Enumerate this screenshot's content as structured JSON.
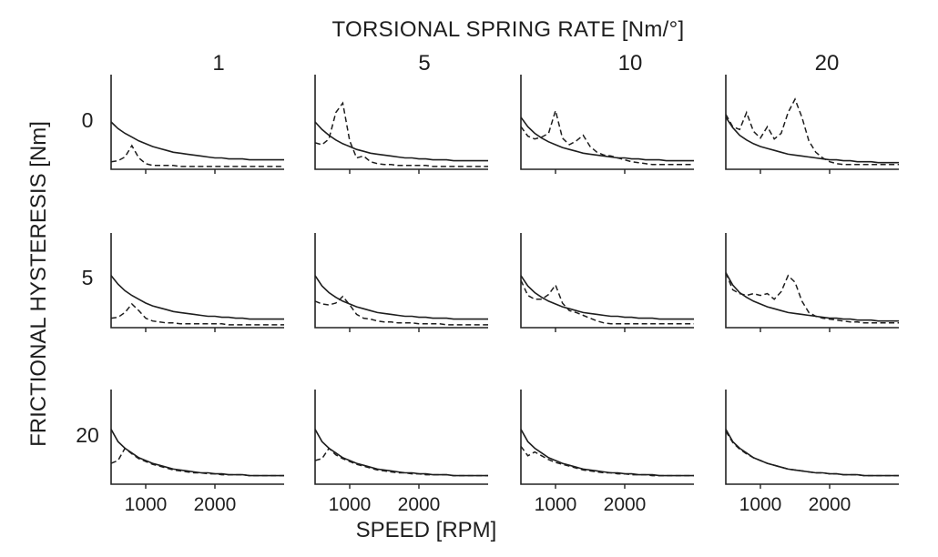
{
  "chart_data": {
    "type": "line",
    "layout": "small-multiples-grid",
    "title": "TORSIONAL SPRING RATE [Nm/°]",
    "xlabel": "SPEED [RPM]",
    "ylabel": "FRICTIONAL HYSTERESIS [Nm]",
    "columns": [
      "1",
      "5",
      "10",
      "20"
    ],
    "rows": [
      "0",
      "5",
      "20"
    ],
    "xlim": [
      500,
      3000
    ],
    "ylim": [
      0,
      1
    ],
    "xticks": [
      1000,
      2000
    ],
    "xtick_labels": [
      "1000",
      "2000"
    ],
    "grid": false,
    "series_styles": {
      "solid": "solid line",
      "dashed": "dashed line"
    },
    "x": [
      500,
      600,
      700,
      800,
      900,
      1000,
      1100,
      1200,
      1300,
      1400,
      1500,
      1600,
      1700,
      1800,
      1900,
      2000,
      2100,
      2200,
      2300,
      2400,
      2500,
      2600,
      2700,
      2800,
      2900,
      3000
    ],
    "panels": [
      {
        "row": "0",
        "col": "1",
        "solid": [
          0.5,
          0.43,
          0.38,
          0.34,
          0.3,
          0.27,
          0.24,
          0.22,
          0.2,
          0.18,
          0.17,
          0.16,
          0.15,
          0.14,
          0.13,
          0.12,
          0.12,
          0.11,
          0.11,
          0.11,
          0.1,
          0.1,
          0.1,
          0.1,
          0.1,
          0.1
        ],
        "dashed": [
          0.08,
          0.09,
          0.13,
          0.25,
          0.12,
          0.06,
          0.04,
          0.04,
          0.04,
          0.04,
          0.03,
          0.03,
          0.03,
          0.03,
          0.03,
          0.03,
          0.03,
          0.03,
          0.03,
          0.03,
          0.03,
          0.03,
          0.03,
          0.03,
          0.03,
          0.03
        ]
      },
      {
        "row": "0",
        "col": "5",
        "solid": [
          0.5,
          0.42,
          0.36,
          0.31,
          0.27,
          0.24,
          0.21,
          0.19,
          0.17,
          0.16,
          0.15,
          0.14,
          0.13,
          0.12,
          0.12,
          0.11,
          0.11,
          0.1,
          0.1,
          0.1,
          0.09,
          0.09,
          0.09,
          0.09,
          0.09,
          0.09
        ],
        "dashed": [
          0.28,
          0.26,
          0.32,
          0.6,
          0.7,
          0.3,
          0.12,
          0.14,
          0.08,
          0.06,
          0.05,
          0.05,
          0.04,
          0.04,
          0.04,
          0.04,
          0.04,
          0.03,
          0.03,
          0.03,
          0.03,
          0.03,
          0.03,
          0.03,
          0.03,
          0.03
        ]
      },
      {
        "row": "0",
        "col": "10",
        "solid": [
          0.55,
          0.45,
          0.38,
          0.33,
          0.29,
          0.26,
          0.23,
          0.21,
          0.19,
          0.17,
          0.16,
          0.15,
          0.14,
          0.13,
          0.12,
          0.12,
          0.11,
          0.11,
          0.1,
          0.1,
          0.1,
          0.09,
          0.09,
          0.09,
          0.09,
          0.09
        ],
        "dashed": [
          0.45,
          0.35,
          0.32,
          0.34,
          0.38,
          0.62,
          0.33,
          0.26,
          0.3,
          0.36,
          0.24,
          0.18,
          0.15,
          0.14,
          0.12,
          0.1,
          0.08,
          0.07,
          0.06,
          0.05,
          0.05,
          0.05,
          0.05,
          0.05,
          0.05,
          0.05
        ]
      },
      {
        "row": "0",
        "col": "20",
        "solid": [
          0.55,
          0.44,
          0.36,
          0.31,
          0.27,
          0.24,
          0.22,
          0.2,
          0.18,
          0.16,
          0.15,
          0.14,
          0.13,
          0.12,
          0.11,
          0.1,
          0.1,
          0.09,
          0.09,
          0.08,
          0.08,
          0.08,
          0.07,
          0.07,
          0.07,
          0.07
        ],
        "dashed": [
          0.58,
          0.45,
          0.42,
          0.6,
          0.4,
          0.33,
          0.45,
          0.32,
          0.38,
          0.6,
          0.74,
          0.55,
          0.3,
          0.18,
          0.12,
          0.08,
          0.06,
          0.05,
          0.05,
          0.05,
          0.05,
          0.05,
          0.05,
          0.05,
          0.05,
          0.05
        ]
      },
      {
        "row": "5",
        "col": "1",
        "solid": [
          0.55,
          0.46,
          0.39,
          0.34,
          0.3,
          0.26,
          0.23,
          0.21,
          0.19,
          0.17,
          0.16,
          0.15,
          0.14,
          0.13,
          0.12,
          0.12,
          0.11,
          0.11,
          0.1,
          0.1,
          0.09,
          0.09,
          0.09,
          0.09,
          0.09,
          0.09
        ],
        "dashed": [
          0.1,
          0.11,
          0.16,
          0.25,
          0.18,
          0.1,
          0.07,
          0.06,
          0.05,
          0.05,
          0.04,
          0.04,
          0.04,
          0.04,
          0.04,
          0.04,
          0.04,
          0.03,
          0.03,
          0.03,
          0.03,
          0.03,
          0.03,
          0.03,
          0.03,
          0.03
        ]
      },
      {
        "row": "5",
        "col": "5",
        "solid": [
          0.55,
          0.44,
          0.37,
          0.32,
          0.28,
          0.25,
          0.22,
          0.2,
          0.18,
          0.16,
          0.15,
          0.14,
          0.13,
          0.12,
          0.12,
          0.11,
          0.11,
          0.1,
          0.1,
          0.1,
          0.09,
          0.09,
          0.09,
          0.09,
          0.09,
          0.09
        ],
        "dashed": [
          0.28,
          0.25,
          0.24,
          0.26,
          0.33,
          0.24,
          0.14,
          0.1,
          0.09,
          0.07,
          0.06,
          0.06,
          0.05,
          0.05,
          0.05,
          0.04,
          0.04,
          0.04,
          0.04,
          0.03,
          0.03,
          0.03,
          0.03,
          0.03,
          0.03,
          0.03
        ]
      },
      {
        "row": "5",
        "col": "10",
        "solid": [
          0.55,
          0.44,
          0.37,
          0.32,
          0.28,
          0.25,
          0.22,
          0.2,
          0.18,
          0.16,
          0.15,
          0.14,
          0.13,
          0.12,
          0.12,
          0.11,
          0.11,
          0.1,
          0.1,
          0.1,
          0.09,
          0.09,
          0.09,
          0.09,
          0.09,
          0.09
        ],
        "dashed": [
          0.5,
          0.34,
          0.3,
          0.3,
          0.35,
          0.45,
          0.26,
          0.18,
          0.16,
          0.13,
          0.1,
          0.07,
          0.05,
          0.04,
          0.04,
          0.04,
          0.04,
          0.04,
          0.04,
          0.04,
          0.04,
          0.04,
          0.04,
          0.04,
          0.04,
          0.04
        ]
      },
      {
        "row": "5",
        "col": "20",
        "solid": [
          0.58,
          0.45,
          0.37,
          0.32,
          0.28,
          0.25,
          0.22,
          0.2,
          0.18,
          0.16,
          0.15,
          0.14,
          0.13,
          0.12,
          0.11,
          0.1,
          0.1,
          0.09,
          0.09,
          0.08,
          0.08,
          0.08,
          0.07,
          0.07,
          0.07,
          0.07
        ],
        "dashed": [
          0.58,
          0.4,
          0.36,
          0.34,
          0.36,
          0.34,
          0.36,
          0.3,
          0.38,
          0.55,
          0.48,
          0.28,
          0.16,
          0.12,
          0.1,
          0.09,
          0.08,
          0.07,
          0.06,
          0.06,
          0.05,
          0.05,
          0.05,
          0.05,
          0.05,
          0.05
        ]
      },
      {
        "row": "20",
        "col": "1",
        "solid": [
          0.58,
          0.45,
          0.38,
          0.33,
          0.28,
          0.25,
          0.22,
          0.2,
          0.18,
          0.16,
          0.15,
          0.14,
          0.13,
          0.12,
          0.12,
          0.11,
          0.11,
          0.1,
          0.1,
          0.1,
          0.09,
          0.09,
          0.09,
          0.09,
          0.09,
          0.09
        ],
        "dashed": [
          0.22,
          0.25,
          0.38,
          0.32,
          0.27,
          0.24,
          0.21,
          0.19,
          0.17,
          0.15,
          0.14,
          0.13,
          0.12,
          0.12,
          0.11,
          0.11,
          0.1,
          0.1,
          0.1,
          0.1,
          0.09,
          0.09,
          0.09,
          0.09,
          0.09,
          0.09
        ]
      },
      {
        "row": "20",
        "col": "5",
        "solid": [
          0.58,
          0.45,
          0.38,
          0.33,
          0.28,
          0.25,
          0.22,
          0.2,
          0.18,
          0.16,
          0.15,
          0.14,
          0.13,
          0.12,
          0.12,
          0.11,
          0.11,
          0.1,
          0.1,
          0.1,
          0.09,
          0.09,
          0.09,
          0.09,
          0.09,
          0.09
        ],
        "dashed": [
          0.25,
          0.27,
          0.38,
          0.31,
          0.27,
          0.24,
          0.21,
          0.19,
          0.17,
          0.15,
          0.14,
          0.13,
          0.12,
          0.12,
          0.11,
          0.11,
          0.1,
          0.1,
          0.1,
          0.1,
          0.09,
          0.09,
          0.09,
          0.09,
          0.09,
          0.09
        ]
      },
      {
        "row": "20",
        "col": "10",
        "solid": [
          0.58,
          0.45,
          0.38,
          0.33,
          0.28,
          0.25,
          0.22,
          0.2,
          0.18,
          0.16,
          0.15,
          0.14,
          0.13,
          0.12,
          0.12,
          0.11,
          0.11,
          0.1,
          0.1,
          0.1,
          0.09,
          0.09,
          0.09,
          0.09,
          0.09,
          0.09
        ],
        "dashed": [
          0.4,
          0.3,
          0.34,
          0.3,
          0.26,
          0.23,
          0.21,
          0.19,
          0.17,
          0.15,
          0.14,
          0.13,
          0.12,
          0.12,
          0.11,
          0.11,
          0.1,
          0.1,
          0.1,
          0.09,
          0.09,
          0.09,
          0.09,
          0.09,
          0.09,
          0.09
        ]
      },
      {
        "row": "20",
        "col": "20",
        "solid": [
          0.58,
          0.45,
          0.38,
          0.33,
          0.28,
          0.25,
          0.22,
          0.2,
          0.18,
          0.16,
          0.15,
          0.14,
          0.13,
          0.12,
          0.12,
          0.11,
          0.11,
          0.1,
          0.1,
          0.1,
          0.09,
          0.09,
          0.09,
          0.09,
          0.09,
          0.09
        ],
        "dashed": [
          0.56,
          0.44,
          0.37,
          0.32,
          0.28,
          0.25,
          0.22,
          0.2,
          0.18,
          0.16,
          0.15,
          0.14,
          0.13,
          0.12,
          0.12,
          0.11,
          0.11,
          0.1,
          0.1,
          0.1,
          0.09,
          0.09,
          0.09,
          0.09,
          0.09,
          0.09
        ]
      }
    ]
  }
}
